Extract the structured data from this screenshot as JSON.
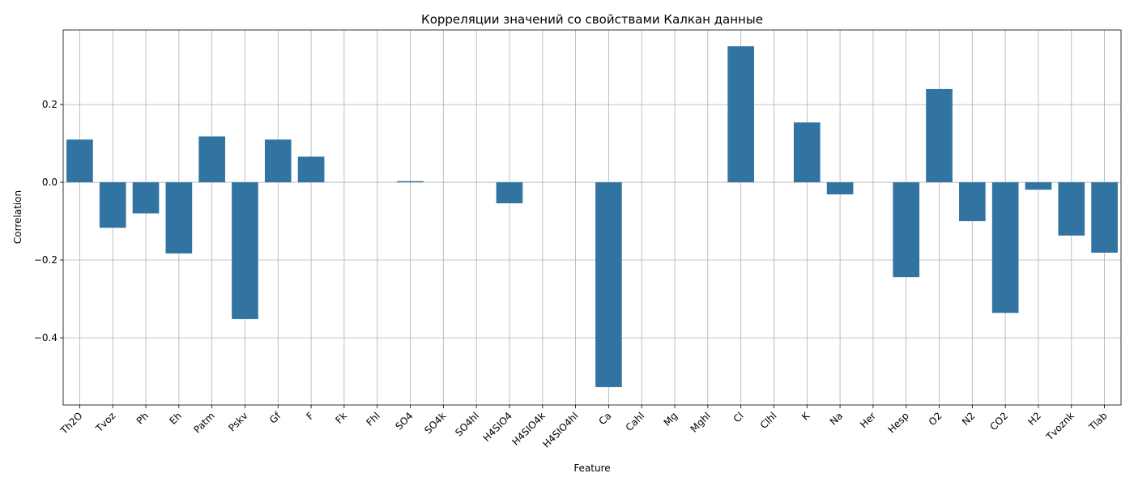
{
  "chart_data": {
    "type": "bar",
    "title": "Корреляции значений со свойствами Калкан данные",
    "xlabel": "Feature",
    "ylabel": "Correlation",
    "categories": [
      "Th2O",
      "Tvoz",
      "Ph",
      "Eh",
      "Patm",
      "Pskv",
      "Gf",
      "F",
      "Fk",
      "Fhl",
      "SO4",
      "SO4k",
      "SO4hl",
      "H4SIO4",
      "H4SIO4k",
      "H4SIO4hl",
      "Ca",
      "Cahl",
      "Mg",
      "Mghl",
      "Cl",
      "Clhl",
      "K",
      "Na",
      "Her",
      "Hesp",
      "O2",
      "N2",
      "CO2",
      "H2",
      "Tvoznk",
      "Tlab"
    ],
    "values": [
      0.11,
      -0.117,
      -0.08,
      -0.183,
      0.118,
      -0.352,
      0.11,
      0.066,
      0,
      0,
      0.003,
      0,
      0,
      -0.054,
      0,
      0,
      -0.527,
      0,
      0,
      0,
      0.35,
      0,
      0.154,
      -0.031,
      0,
      -0.244,
      0.24,
      -0.1,
      -0.336,
      -0.019,
      -0.137,
      -0.181
    ],
    "yticks": [
      0.2,
      0.0,
      -0.2,
      -0.4
    ],
    "ytick_labels": [
      "0.2",
      "0.0",
      "−0.2",
      "−0.4"
    ],
    "ylim": [
      -0.573,
      0.392
    ],
    "grid": true,
    "bar_color": "#3274a1"
  }
}
